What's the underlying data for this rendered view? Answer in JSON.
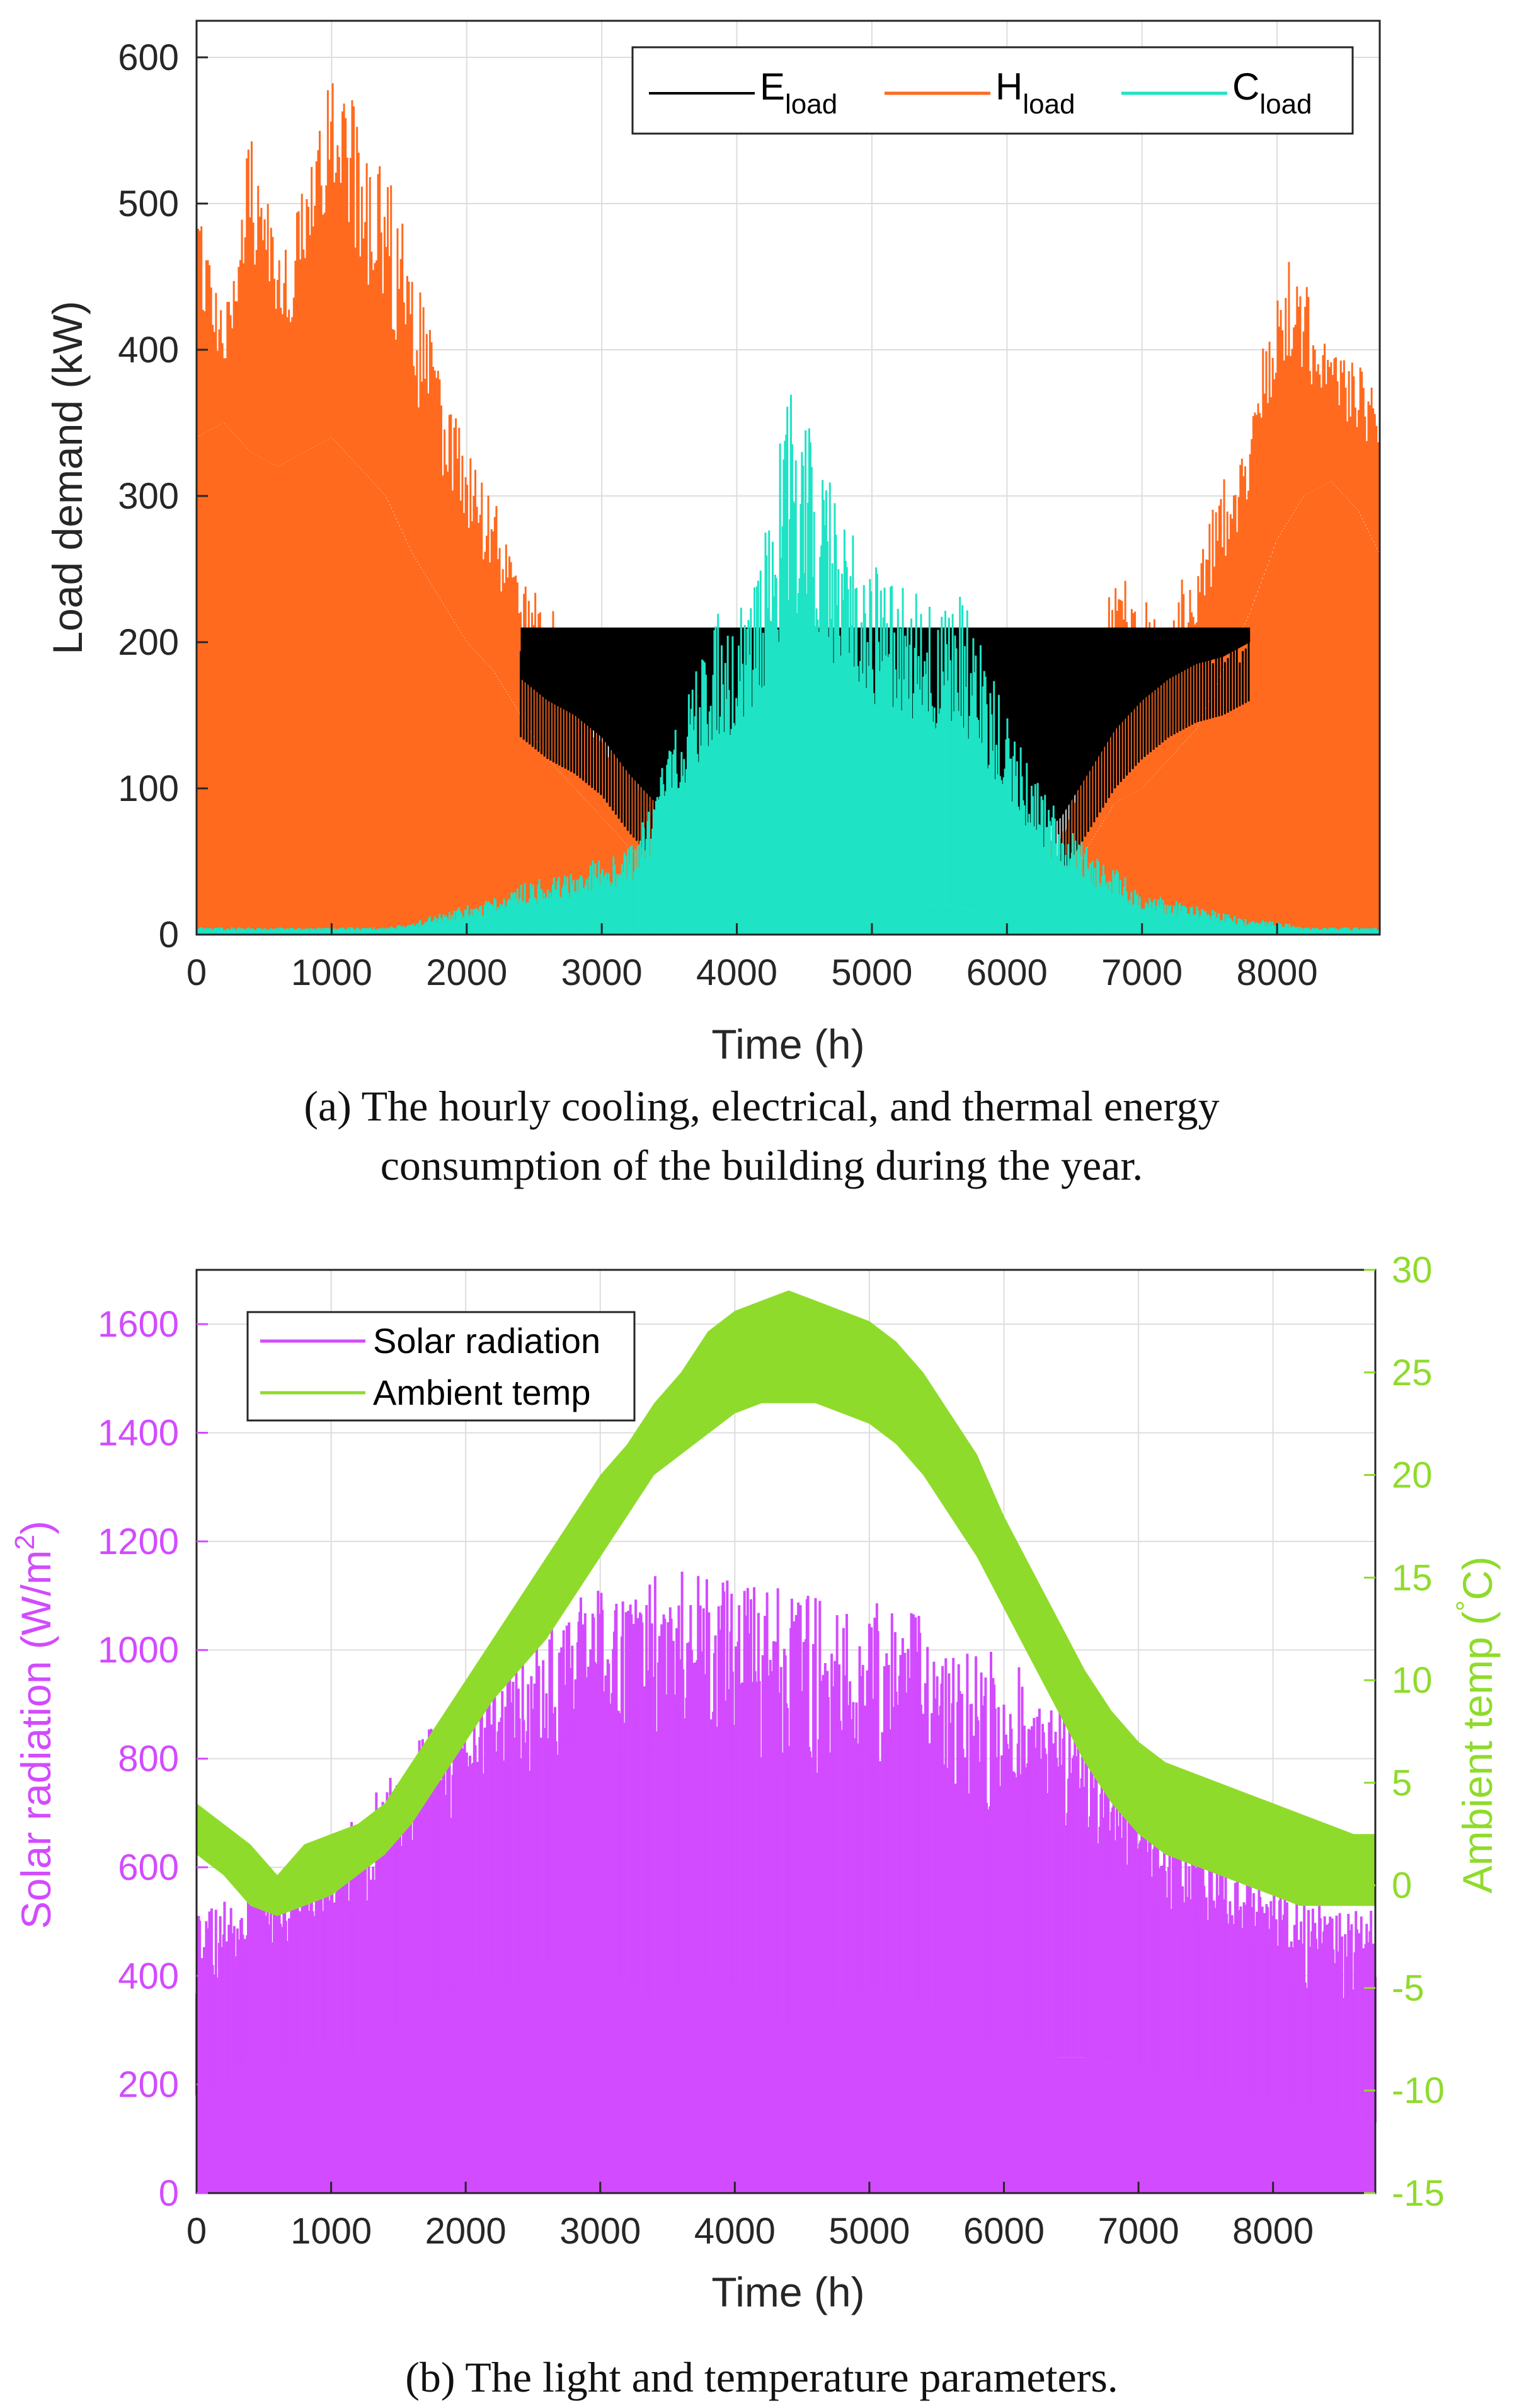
{
  "colors": {
    "electric": "#000000",
    "heat": "#FF6A1F",
    "cooling": "#1EE3C4",
    "solar": "#D24BFF",
    "temperature": "#8FDB2B",
    "grid": "#DDDDDD",
    "axis": "#262626"
  },
  "chart_data": [
    {
      "id": "a",
      "type": "area",
      "title": "",
      "caption_line1": "(a) The hourly cooling, electrical, and thermal energy",
      "caption_line2": "consumption of the building during the year.",
      "xlabel": "Time (h)",
      "ylabel": "Load demand (kW)",
      "xlim": [
        0,
        8760
      ],
      "ylim": [
        0,
        625
      ],
      "xticks": [
        0,
        1000,
        2000,
        3000,
        4000,
        5000,
        6000,
        7000,
        8000
      ],
      "yticks": [
        0,
        100,
        200,
        300,
        400,
        500,
        600
      ],
      "grid": true,
      "legend_position": "top-right",
      "legend": [
        {
          "base": "E",
          "sub": "load",
          "color_key": "electric"
        },
        {
          "base": "H",
          "sub": "load",
          "color_key": "heat"
        },
        {
          "base": "C",
          "sub": "load",
          "color_key": "cooling"
        }
      ],
      "x": [
        0,
        200,
        400,
        600,
        800,
        1000,
        1200,
        1400,
        1600,
        1800,
        2000,
        2200,
        2400,
        2600,
        2800,
        3000,
        3200,
        3400,
        3600,
        3800,
        4000,
        4200,
        4400,
        4600,
        4800,
        5000,
        5200,
        5400,
        5600,
        5800,
        6000,
        6200,
        6400,
        6600,
        6800,
        7000,
        7200,
        7400,
        7600,
        7800,
        8000,
        8200,
        8400,
        8600,
        8760
      ],
      "series": [
        {
          "name": "E_load",
          "color_key": "electric",
          "values": [
            0,
            0,
            0,
            0,
            0,
            0,
            0,
            0,
            0,
            0,
            0,
            0,
            210,
            210,
            210,
            210,
            210,
            210,
            210,
            210,
            210,
            210,
            210,
            210,
            210,
            210,
            210,
            210,
            210,
            210,
            210,
            210,
            210,
            210,
            210,
            210,
            210,
            210,
            210,
            210,
            0,
            0,
            0,
            0,
            0
          ],
          "min_values": [
            0,
            0,
            0,
            0,
            0,
            0,
            0,
            0,
            0,
            0,
            0,
            0,
            175,
            160,
            150,
            135,
            110,
            90,
            75,
            70,
            70,
            75,
            80,
            85,
            90,
            95,
            95,
            95,
            90,
            85,
            70,
            65,
            80,
            110,
            140,
            160,
            175,
            185,
            190,
            200,
            0,
            0,
            0,
            0,
            0
          ]
        },
        {
          "name": "H_load",
          "color_key": "heat",
          "values": [
            500,
            420,
            560,
            470,
            520,
            610,
            560,
            530,
            460,
            390,
            330,
            300,
            240,
            230,
            190,
            160,
            140,
            110,
            70,
            40,
            20,
            10,
            5,
            5,
            5,
            5,
            5,
            5,
            5,
            5,
            10,
            40,
            80,
            170,
            250,
            230,
            230,
            260,
            310,
            350,
            470,
            450,
            400,
            390,
            370
          ],
          "base_values": [
            340,
            350,
            330,
            320,
            330,
            340,
            320,
            300,
            260,
            230,
            200,
            180,
            150,
            120,
            100,
            80,
            60,
            40,
            20,
            5,
            0,
            0,
            0,
            0,
            0,
            0,
            0,
            0,
            0,
            0,
            0,
            0,
            20,
            60,
            90,
            100,
            120,
            140,
            180,
            220,
            270,
            300,
            310,
            290,
            260
          ]
        },
        {
          "name": "C_load",
          "color_key": "cooling",
          "values": [
            5,
            5,
            5,
            5,
            5,
            5,
            5,
            5,
            8,
            15,
            20,
            25,
            35,
            40,
            45,
            55,
            60,
            100,
            160,
            220,
            230,
            270,
            380,
            340,
            290,
            260,
            240,
            230,
            250,
            200,
            150,
            110,
            80,
            60,
            45,
            30,
            25,
            20,
            15,
            10,
            10,
            5,
            5,
            5,
            5
          ],
          "base_values": [
            0,
            0,
            0,
            0,
            0,
            0,
            0,
            0,
            0,
            0,
            0,
            0,
            0,
            0,
            0,
            0,
            0,
            0,
            10,
            20,
            25,
            30,
            35,
            30,
            30,
            25,
            25,
            20,
            20,
            15,
            10,
            5,
            0,
            0,
            0,
            0,
            0,
            0,
            0,
            0,
            0,
            0,
            0,
            0,
            0
          ]
        }
      ]
    },
    {
      "id": "b",
      "type": "area",
      "title": "",
      "caption_line1": "(b) The light and temperature parameters.",
      "xlabel": "Time (h)",
      "ylabel_left": "Solar radiation (W/m",
      "ylabel_left_sup": "2",
      "ylabel_left_end": ")",
      "ylabel_right": "Ambient temp (",
      "ylabel_right_deg": "°",
      "ylabel_right_end": "C)",
      "xlim": [
        0,
        8760
      ],
      "ylim_left": [
        0,
        1700
      ],
      "ylim_right": [
        -15,
        30
      ],
      "xticks": [
        0,
        1000,
        2000,
        3000,
        4000,
        5000,
        6000,
        7000,
        8000
      ],
      "yticks_left": [
        0,
        200,
        400,
        600,
        800,
        1000,
        1200,
        1400,
        1600
      ],
      "yticks_right": [
        -15,
        -10,
        -5,
        0,
        5,
        10,
        15,
        20,
        25,
        30
      ],
      "grid": true,
      "legend_position": "top-left",
      "legend": [
        {
          "label": "Solar radiation",
          "color_key": "solar"
        },
        {
          "label": "Ambient temp",
          "color_key": "temperature"
        }
      ],
      "x": [
        0,
        200,
        400,
        600,
        800,
        1000,
        1200,
        1400,
        1600,
        1800,
        2000,
        2200,
        2400,
        2600,
        2800,
        3000,
        3200,
        3400,
        3600,
        3800,
        4000,
        4200,
        4400,
        4600,
        4800,
        5000,
        5200,
        5400,
        5600,
        5800,
        6000,
        6200,
        6400,
        6600,
        6800,
        7000,
        7200,
        7400,
        7600,
        7800,
        8000,
        8200,
        8400,
        8600,
        8760
      ],
      "series": [
        {
          "name": "Solar radiation",
          "axis": "left",
          "color_key": "solar",
          "values": [
            520,
            540,
            560,
            610,
            620,
            640,
            700,
            760,
            820,
            880,
            930,
            980,
            1010,
            1060,
            1090,
            1120,
            1130,
            1140,
            1150,
            1140,
            1130,
            1120,
            1110,
            1110,
            1100,
            1090,
            1080,
            1060,
            1040,
            1010,
            990,
            960,
            930,
            880,
            830,
            780,
            730,
            680,
            640,
            600,
            570,
            550,
            530,
            520,
            520
          ],
          "min_values": [
            180,
            200,
            250,
            230,
            260,
            280,
            250,
            300,
            320,
            350,
            380,
            400,
            380,
            420,
            400,
            400,
            390,
            350,
            380,
            400,
            380,
            350,
            300,
            320,
            350,
            380,
            360,
            340,
            300,
            280,
            260,
            280,
            250,
            250,
            240,
            230,
            220,
            200,
            190,
            180,
            170,
            160,
            150,
            140,
            130
          ]
        },
        {
          "name": "Ambient temp",
          "axis": "right",
          "color_key": "temperature",
          "values": [
            4,
            3,
            2,
            0.5,
            2,
            2.5,
            3,
            4,
            6,
            8,
            10,
            12,
            14,
            16,
            18,
            20,
            21.5,
            23.5,
            25,
            27,
            28,
            28.5,
            29,
            28.5,
            28,
            27.5,
            26.5,
            25,
            23,
            21,
            18,
            15.5,
            13,
            10.5,
            8.5,
            7,
            6,
            5.5,
            5,
            4.5,
            4,
            3.5,
            3,
            2.5,
            2.5
          ],
          "min_values": [
            1.5,
            0.5,
            -1,
            -1.5,
            -1,
            -0.5,
            0.5,
            1.5,
            3,
            5,
            7,
            9,
            10.5,
            12,
            14,
            16,
            18,
            20,
            21,
            22,
            23,
            23.5,
            23.5,
            23.5,
            23,
            22.5,
            21.5,
            20,
            18,
            16,
            13.5,
            11,
            8.5,
            6,
            4,
            2.5,
            1.5,
            1,
            0.5,
            0,
            -0.5,
            -1,
            -1,
            -1,
            -1
          ]
        }
      ]
    }
  ]
}
